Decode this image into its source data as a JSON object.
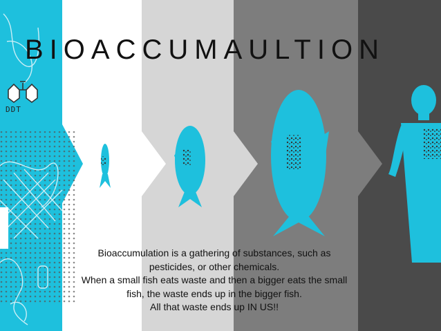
{
  "title": "BIOACCUMAULTION",
  "ddt_label": "DDT",
  "description": {
    "line1": "Bioaccumulation is a gathering of substances, such as",
    "line2": "pesticides, or other chemicals.",
    "line3": "When a small fish eats waste and then a bigger eats the small",
    "line4": "fish, the waste ends up in the bigger fish.",
    "line5": "All that waste ends up IN US!!"
  },
  "colors": {
    "cyan": "#1ec0dd",
    "white": "#ffffff",
    "light_gray": "#d6d6d6",
    "mid_gray": "#7d7d7d",
    "dark_gray": "#4a4a4a"
  },
  "stages": [
    "small-fish",
    "medium-fish",
    "large-fish",
    "human"
  ]
}
